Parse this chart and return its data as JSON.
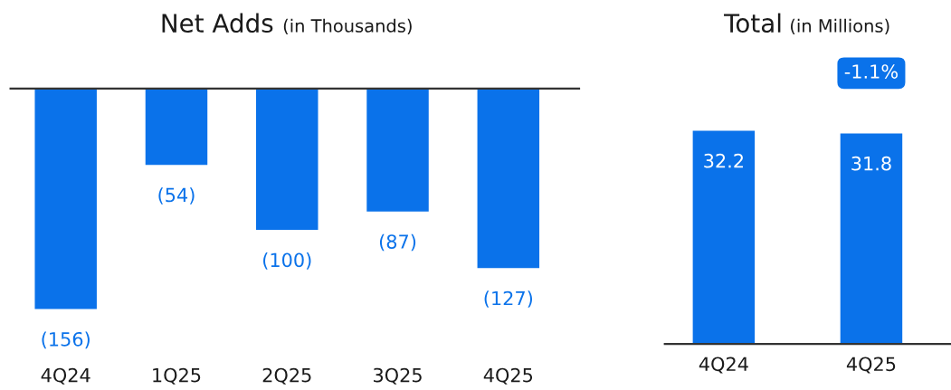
{
  "chart_data": [
    {
      "type": "bar",
      "title": "Net Adds",
      "subtitle": "(in Thousands)",
      "categories": [
        "4Q24",
        "1Q25",
        "2Q25",
        "3Q25",
        "4Q25"
      ],
      "values": [
        -156,
        -54,
        -100,
        -87,
        -127
      ],
      "color": "#0a72ea",
      "data_labels": true,
      "value_labels": [
        "(156)",
        "(54)",
        "(100)",
        "(87)",
        "(127)"
      ],
      "grid": false,
      "legend": false
    },
    {
      "type": "bar",
      "title": "Total",
      "subtitle": "(in Millions)",
      "categories": [
        "4Q24",
        "4Q25"
      ],
      "values": [
        32.2,
        31.8
      ],
      "color": "#0a72ea",
      "data_labels": true,
      "annotations": [
        "-1.1%"
      ],
      "grid": false,
      "legend": false
    }
  ]
}
